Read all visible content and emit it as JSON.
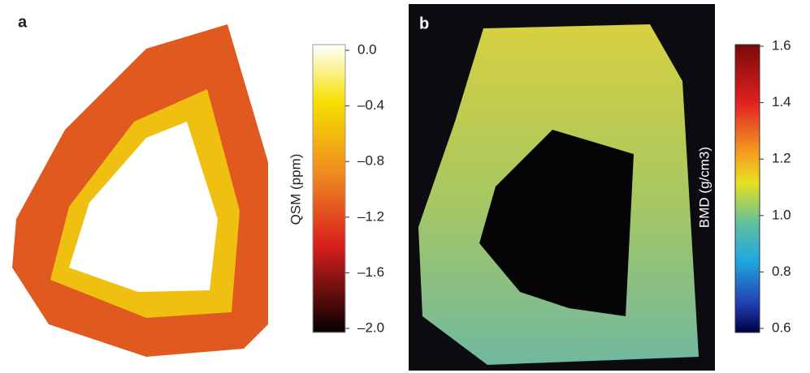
{
  "panels": [
    {
      "label": "a",
      "colorbar": {
        "label": "QSM (ppm)",
        "lim": [
          -2,
          0
        ],
        "ticks": [
          {
            "value": 0,
            "label": "0.0"
          },
          {
            "value": -0.4,
            "label": "–0.4"
          },
          {
            "value": -0.8,
            "label": "–0.8"
          },
          {
            "value": -1.2,
            "label": "–1.2"
          },
          {
            "value": -1.6,
            "label": "–1.6"
          },
          {
            "value": -2,
            "label": "–2.0"
          }
        ]
      }
    },
    {
      "label": "b",
      "colorbar": {
        "label": "BMD (g/cm3)",
        "lim": [
          0.6,
          1.6
        ],
        "ticks": [
          1.6,
          1.4,
          1.2,
          {
            "value": 1,
            "label": "1.0"
          },
          0.8,
          0.6
        ]
      }
    }
  ]
}
